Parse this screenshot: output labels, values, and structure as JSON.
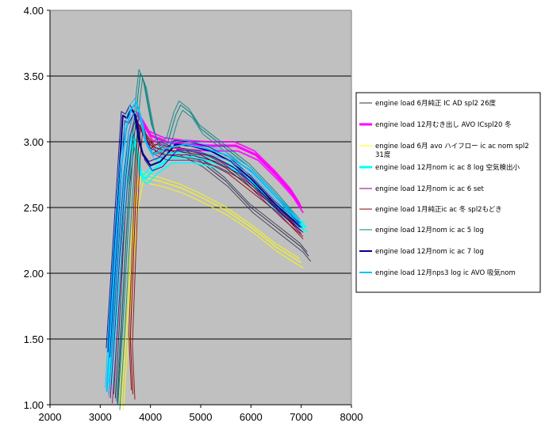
{
  "chart_data": {
    "type": "line",
    "title": "",
    "xlabel": "",
    "ylabel": "",
    "xlim": [
      2000,
      8000
    ],
    "ylim": [
      1.0,
      4.0
    ],
    "x_ticks": [
      "2000",
      "3000",
      "4000",
      "5000",
      "6000",
      "7000",
      "8000"
    ],
    "y_ticks": [
      "1.00",
      "1.50",
      "2.00",
      "2.50",
      "3.00",
      "3.50",
      "4.00"
    ],
    "plot_background": "#c0c0c0",
    "grid": "horizontal",
    "legend_position": "right",
    "series": [
      {
        "name": "engine load 6月純正 IC AD spl2 26度",
        "color": "#2f2f4f",
        "width": 1,
        "points": [
          [
            3300,
            1.05
          ],
          [
            3380,
            1.6
          ],
          [
            3460,
            2.2
          ],
          [
            3540,
            2.7
          ],
          [
            3620,
            2.95
          ],
          [
            3700,
            3.1
          ],
          [
            3800,
            3.2
          ],
          [
            3900,
            3.05
          ],
          [
            4000,
            2.95
          ],
          [
            4200,
            3.0
          ],
          [
            4500,
            2.95
          ],
          [
            5000,
            2.85
          ],
          [
            5500,
            2.7
          ],
          [
            6000,
            2.5
          ],
          [
            6500,
            2.35
          ],
          [
            7000,
            2.2
          ],
          [
            7150,
            2.13
          ]
        ]
      },
      {
        "name": "engine load 12月むき出し AVO ICspl20 冬",
        "color": "#ff00ff",
        "width": 3,
        "points": [
          [
            3750,
            3.2
          ],
          [
            3850,
            3.15
          ],
          [
            4000,
            3.05
          ],
          [
            4300,
            3.0
          ],
          [
            4700,
            2.98
          ],
          [
            5200,
            2.97
          ],
          [
            5700,
            2.97
          ],
          [
            6100,
            2.9
          ],
          [
            6500,
            2.75
          ],
          [
            6800,
            2.62
          ],
          [
            7000,
            2.5
          ]
        ]
      },
      {
        "name": "engine load 6月 avo ハイフロー ic ac nom spl2 31度",
        "color": "#ffff00",
        "width": 1,
        "points": [
          [
            3420,
            1.0
          ],
          [
            3520,
            1.55
          ],
          [
            3620,
            2.1
          ],
          [
            3720,
            2.55
          ],
          [
            3820,
            2.75
          ],
          [
            3950,
            2.72
          ],
          [
            4200,
            2.7
          ],
          [
            4600,
            2.65
          ],
          [
            5000,
            2.58
          ],
          [
            5500,
            2.48
          ],
          [
            6000,
            2.35
          ],
          [
            6500,
            2.2
          ],
          [
            7000,
            2.08
          ]
        ]
      },
      {
        "name": "engine load 12月nom ic ac 8 log 空気検出小",
        "color": "#00ffff",
        "width": 3,
        "points": [
          [
            3180,
            1.15
          ],
          [
            3260,
            1.55
          ],
          [
            3340,
            1.95
          ],
          [
            3420,
            2.35
          ],
          [
            3500,
            2.7
          ],
          [
            3580,
            2.95
          ],
          [
            3650,
            3.05
          ],
          [
            3720,
            2.95
          ],
          [
            3800,
            2.75
          ],
          [
            3900,
            2.72
          ],
          [
            4100,
            2.8
          ],
          [
            4400,
            2.88
          ],
          [
            4800,
            2.88
          ],
          [
            5200,
            2.85
          ],
          [
            5600,
            2.8
          ],
          [
            6000,
            2.7
          ],
          [
            6500,
            2.5
          ],
          [
            6800,
            2.42
          ],
          [
            7100,
            2.35
          ]
        ]
      },
      {
        "name": "engine load 12月nom ic ac 6 set",
        "color": "#800080",
        "width": 1,
        "points": [
          [
            3200,
            1.05
          ],
          [
            3300,
            1.6
          ],
          [
            3400,
            2.2
          ],
          [
            3500,
            2.7
          ],
          [
            3600,
            3.05
          ],
          [
            3700,
            3.2
          ],
          [
            3800,
            3.1
          ],
          [
            4000,
            2.95
          ],
          [
            4300,
            2.9
          ],
          [
            4800,
            2.9
          ],
          [
            5300,
            2.85
          ],
          [
            5800,
            2.75
          ],
          [
            6200,
            2.6
          ],
          [
            6600,
            2.45
          ],
          [
            7000,
            2.32
          ]
        ]
      },
      {
        "name": "engine load 1月純正ic ac 冬 spl2もどき",
        "color": "#8b0000",
        "width": 1,
        "points": [
          [
            3650,
            1.08
          ],
          [
            3600,
            1.5
          ],
          [
            3650,
            2.0
          ],
          [
            3700,
            2.5
          ],
          [
            3750,
            2.9
          ],
          [
            3800,
            3.1
          ],
          [
            3900,
            3.05
          ],
          [
            4100,
            2.95
          ],
          [
            4500,
            2.93
          ],
          [
            5000,
            2.9
          ],
          [
            5500,
            2.8
          ],
          [
            6000,
            2.65
          ],
          [
            6500,
            2.5
          ],
          [
            7000,
            2.3
          ]
        ]
      },
      {
        "name": "engine load 12月nom ic ac 5 log",
        "color": "#008080",
        "width": 1,
        "points": [
          [
            3350,
            1.0
          ],
          [
            3450,
            1.6
          ],
          [
            3550,
            2.3
          ],
          [
            3650,
            2.9
          ],
          [
            3750,
            3.35
          ],
          [
            3800,
            3.52
          ],
          [
            3880,
            3.45
          ],
          [
            3950,
            3.3
          ],
          [
            4050,
            3.1
          ],
          [
            4200,
            2.95
          ],
          [
            4350,
            3.0
          ],
          [
            4500,
            3.2
          ],
          [
            4600,
            3.28
          ],
          [
            4800,
            3.22
          ],
          [
            5000,
            3.1
          ],
          [
            5500,
            2.95
          ],
          [
            6000,
            2.8
          ],
          [
            6500,
            2.6
          ],
          [
            7000,
            2.38
          ]
        ]
      },
      {
        "name": "engine load 12月nom ic ac 7 log",
        "color": "#00008b",
        "width": 2,
        "points": [
          [
            3150,
            1.4
          ],
          [
            3250,
            2.0
          ],
          [
            3350,
            2.6
          ],
          [
            3450,
            3.2
          ],
          [
            3530,
            3.18
          ],
          [
            3620,
            3.25
          ],
          [
            3700,
            3.2
          ],
          [
            3780,
            3.0
          ],
          [
            3850,
            2.9
          ],
          [
            4000,
            2.82
          ],
          [
            4200,
            2.85
          ],
          [
            4500,
            2.98
          ],
          [
            4800,
            2.97
          ],
          [
            5200,
            2.93
          ],
          [
            5600,
            2.85
          ],
          [
            6000,
            2.72
          ],
          [
            6500,
            2.52
          ],
          [
            7000,
            2.35
          ]
        ]
      },
      {
        "name": "engine load 12月nps3 log ic AVO 吸気nom",
        "color": "#00bfff",
        "width": 2,
        "points": [
          [
            3130,
            1.1
          ],
          [
            3220,
            1.7
          ],
          [
            3320,
            2.3
          ],
          [
            3420,
            2.8
          ],
          [
            3520,
            3.1
          ],
          [
            3620,
            3.25
          ],
          [
            3720,
            3.3
          ],
          [
            3800,
            3.2
          ],
          [
            3900,
            3.0
          ],
          [
            4050,
            2.9
          ],
          [
            4300,
            2.95
          ],
          [
            4700,
            2.98
          ],
          [
            5100,
            2.95
          ],
          [
            5500,
            2.9
          ],
          [
            6000,
            2.78
          ],
          [
            6500,
            2.58
          ],
          [
            7000,
            2.38
          ]
        ]
      }
    ]
  }
}
